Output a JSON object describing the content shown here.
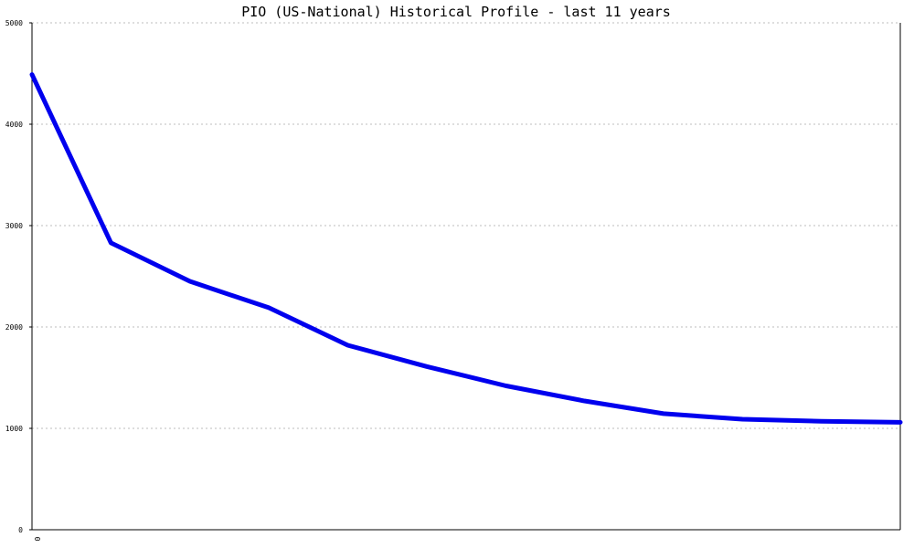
{
  "chart_data": {
    "type": "line",
    "title": "PIO (US-National) Historical Profile - last 11 years",
    "xlabel": "",
    "ylabel": "",
    "ylim": [
      0,
      5000
    ],
    "yticks": [
      "0",
      "1000",
      "2000",
      "3000",
      "4000",
      "5000"
    ],
    "xticks": [
      "0"
    ],
    "grid": true,
    "colors": {
      "series": "#0000ee",
      "grid": "#bdbdbd",
      "axis": "#000000"
    },
    "x": [
      0,
      1,
      2,
      3,
      4,
      5,
      6,
      7,
      8,
      9,
      10,
      11
    ],
    "series": [
      {
        "values": [
          4490,
          2830,
          2450,
          2190,
          1820,
          1610,
          1420,
          1270,
          1145,
          1090,
          1070,
          1060
        ]
      }
    ]
  }
}
